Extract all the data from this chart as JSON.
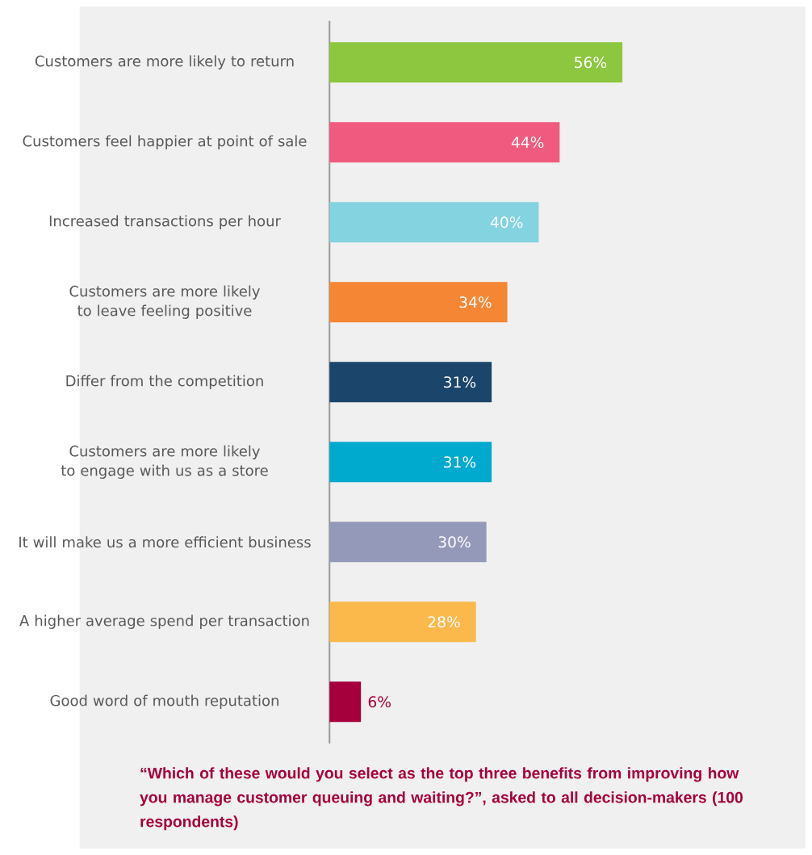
{
  "chart_data": {
    "type": "bar",
    "orientation": "horizontal",
    "categories": [
      "Customers are more likely to return",
      "Customers feel happier at point of sale",
      "Increased transactions per hour",
      "Customers are more likely to leave feeling positive",
      "Differ from the competition",
      "Customers are more likely to engage with us as a store",
      "It will make us a more efficient business",
      "A higher average spend per transaction",
      "Good word of mouth reputation"
    ],
    "values": [
      56,
      44,
      40,
      34,
      31,
      31,
      30,
      28,
      6
    ],
    "value_labels": [
      "56%",
      "44%",
      "40%",
      "34%",
      "31%",
      "31%",
      "30%",
      "28%",
      "6%"
    ],
    "colors": [
      "#8dc63f",
      "#f05a7e",
      "#84d3e0",
      "#f58634",
      "#1b456b",
      "#00a9ce",
      "#9599b9",
      "#fbb84b",
      "#a6003c"
    ],
    "annotations": [
      "“Which of these would you select as the top three benefits from improving how you manage customer queuing and waiting?”, asked to all decision-makers (100 respondents)"
    ]
  }
}
